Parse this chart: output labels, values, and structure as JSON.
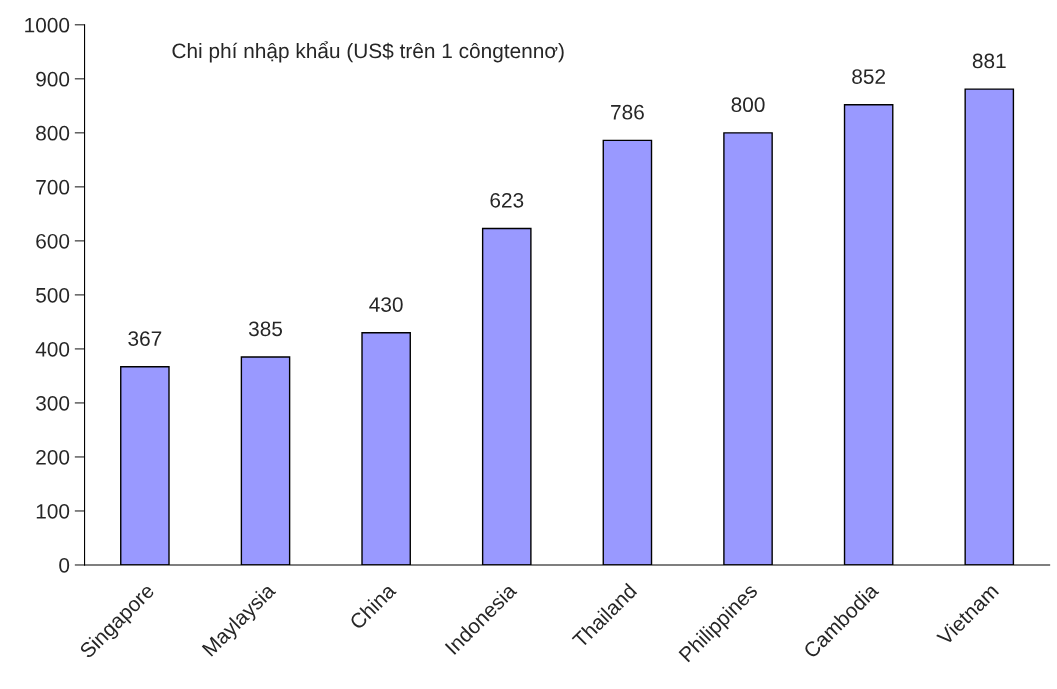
{
  "chart_data": {
    "type": "bar",
    "title": "Chi phí nhập khẩu (US$ trên 1 côngtennơ)",
    "categories": [
      "Singapore",
      "Maylaysia",
      "China",
      "Indonesia",
      "Thailand",
      "Philippines",
      "Cambodia",
      "Vietnam"
    ],
    "values": [
      367,
      385,
      430,
      623,
      786,
      800,
      852,
      881
    ],
    "color": "#9999ff",
    "data_labels": true,
    "ylim": [
      0,
      1000
    ],
    "yticks": [
      0,
      100,
      200,
      300,
      400,
      500,
      600,
      700,
      800,
      900,
      1000
    ],
    "grid": false,
    "legend": false
  }
}
